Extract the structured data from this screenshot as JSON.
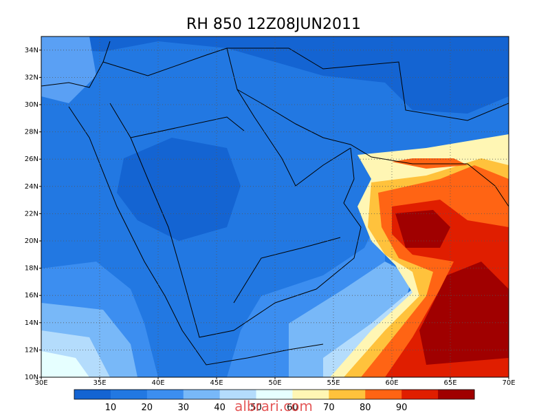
{
  "title": "RH 850 12Z08JUN2011",
  "lon_labels": [
    "30E",
    "35E",
    "40E",
    "45E",
    "50E",
    "55E",
    "60E",
    "65E",
    "70E"
  ],
  "lat_labels": [
    "10N",
    "12N",
    "14N",
    "16N",
    "18N",
    "20N",
    "22N",
    "24N",
    "26N",
    "28N",
    "30N",
    "32N",
    "34N"
  ],
  "colorbar": {
    "labels": [
      "10",
      "20",
      "30",
      "40",
      "50",
      "60",
      "70",
      "80",
      "90"
    ],
    "colors": [
      "#1464d2",
      "#2278e2",
      "#3c8ef0",
      "#78b8f8",
      "#b4dcfc",
      "#e6ffff",
      "#fff6b4",
      "#ffc23c",
      "#ff6414",
      "#e01e00",
      "#a00000"
    ]
  },
  "watermark": "albrari.com"
}
